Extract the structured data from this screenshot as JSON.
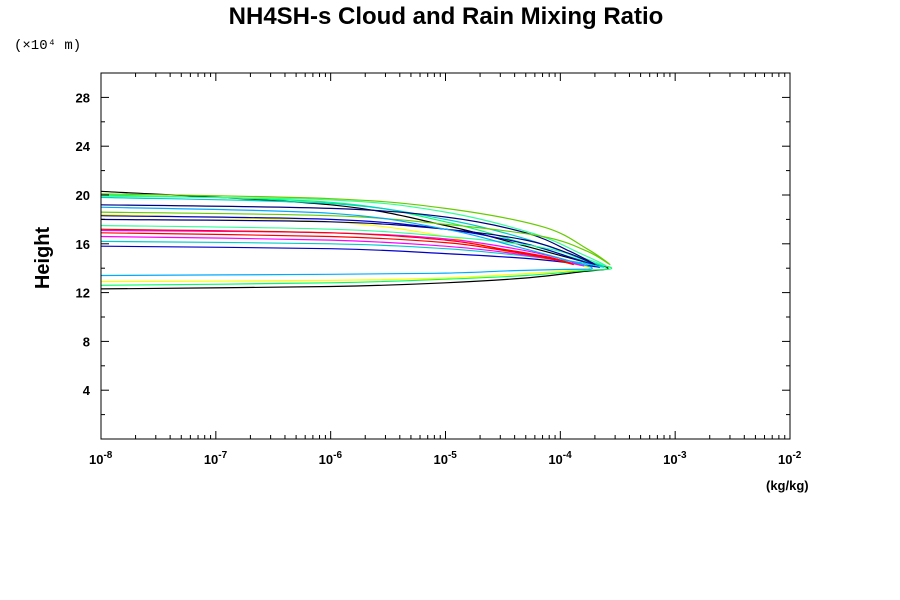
{
  "chart_data": {
    "type": "line",
    "title": "NH4SH-s Cloud and Rain Mixing Ratio",
    "xlabel": "(kg/kg)",
    "ylabel": "Height",
    "y_scale_note": "(×10⁴ m)",
    "x_scale": "log",
    "xlim": [
      1e-08,
      0.01
    ],
    "ylim": [
      0,
      30
    ],
    "x_ticks": [
      {
        "value": 1e-08,
        "base": "10",
        "exp": "-8"
      },
      {
        "value": 1e-07,
        "base": "10",
        "exp": "-7"
      },
      {
        "value": 1e-06,
        "base": "10",
        "exp": "-6"
      },
      {
        "value": 1e-05,
        "base": "10",
        "exp": "-5"
      },
      {
        "value": 0.0001,
        "base": "10",
        "exp": "-4"
      },
      {
        "value": 0.001,
        "base": "10",
        "exp": "-3"
      },
      {
        "value": 0.01,
        "base": "10",
        "exp": "-2"
      }
    ],
    "y_ticks": [
      4,
      8,
      12,
      16,
      20,
      24,
      28
    ],
    "grid": false,
    "legend": "none",
    "series": [
      {
        "color": "#000000",
        "x": [
          1e-08,
          1e-06,
          1e-05,
          5e-05,
          0.00015,
          0.00026,
          0.00015,
          5e-05,
          1e-05,
          1e-06,
          1e-08
        ],
        "y": [
          12.3,
          12.5,
          12.8,
          13.2,
          13.7,
          14.0,
          14.6,
          15.8,
          17.5,
          19.2,
          20.3
        ]
      },
      {
        "color": "#00ff66",
        "x": [
          1e-08,
          1e-06,
          1e-05,
          5e-05,
          0.00016,
          0.00028,
          0.00016,
          5e-05,
          1e-05,
          1e-06,
          1e-08
        ],
        "y": [
          12.6,
          12.8,
          13.1,
          13.4,
          13.8,
          14.0,
          14.6,
          16.0,
          17.8,
          19.4,
          20.0
        ]
      },
      {
        "color": "#ffff00",
        "x": [
          1e-08,
          1e-06,
          1e-05,
          4e-05,
          0.00012,
          0.00018,
          0.00012,
          4e-05,
          1e-05,
          1e-06,
          1e-08
        ],
        "y": [
          12.9,
          13.0,
          13.2,
          13.5,
          13.8,
          14.0,
          14.4,
          15.2,
          16.6,
          17.8,
          18.4
        ]
      },
      {
        "color": "#0000cc",
        "x": [
          1e-08,
          1e-06,
          1e-05,
          5e-05,
          0.00013,
          0.00022,
          0.00013,
          5e-05,
          1e-05,
          1e-06,
          1e-08
        ],
        "y": [
          15.8,
          15.6,
          15.2,
          14.8,
          14.4,
          14.1,
          14.8,
          16.0,
          17.2,
          18.0,
          18.3
        ]
      },
      {
        "color": "#00cccc",
        "x": [
          1e-08,
          1e-06,
          1e-05,
          5e-05,
          0.00014,
          0.00024,
          0.00014,
          5e-05,
          1e-05,
          1e-06,
          1e-08
        ],
        "y": [
          16.2,
          16.0,
          15.6,
          15.0,
          14.5,
          14.1,
          14.9,
          16.4,
          18.0,
          19.3,
          19.8
        ]
      },
      {
        "color": "#ff00ff",
        "x": [
          1e-08,
          1e-06,
          1e-05,
          4e-05,
          0.0001,
          0.00016,
          0.0001,
          4e-05,
          1e-05,
          1e-06,
          1e-08
        ],
        "y": [
          16.6,
          16.3,
          15.8,
          15.2,
          14.6,
          14.2,
          14.8,
          15.6,
          16.4,
          16.9,
          17.1
        ]
      },
      {
        "color": "#ff0000",
        "x": [
          1e-08,
          1e-06,
          1e-05,
          3e-05,
          8e-05,
          0.00013,
          8e-05,
          3e-05,
          1e-05,
          1e-06,
          1e-08
        ],
        "y": [
          16.9,
          16.6,
          16.1,
          15.5,
          14.8,
          14.3,
          14.9,
          15.6,
          16.3,
          16.9,
          17.2
        ]
      },
      {
        "color": "#33ff99",
        "x": [
          1e-08,
          1e-06,
          1e-05,
          6e-05,
          0.00015,
          0.00025,
          0.00015,
          6e-05,
          1e-05,
          1e-06,
          1e-08
        ],
        "y": [
          17.5,
          17.2,
          16.6,
          15.8,
          14.9,
          14.2,
          15.2,
          16.8,
          18.6,
          19.6,
          19.9
        ]
      },
      {
        "color": "#000080",
        "x": [
          1e-08,
          1e-06,
          1e-05,
          5e-05,
          0.00012,
          0.0002,
          0.00012,
          5e-05,
          1e-05,
          1e-06,
          1e-08
        ],
        "y": [
          18.0,
          17.8,
          17.2,
          16.3,
          15.2,
          14.3,
          15.4,
          16.9,
          18.2,
          18.9,
          19.2
        ]
      },
      {
        "color": "#66cc00",
        "x": [
          1e-08,
          1e-06,
          1e-05,
          7e-05,
          0.00017,
          0.00027,
          0.00017,
          7e-05,
          1e-05,
          1e-06,
          1e-08
        ],
        "y": [
          18.6,
          18.3,
          17.6,
          16.6,
          15.4,
          14.3,
          15.6,
          17.4,
          18.9,
          19.7,
          20.1
        ]
      },
      {
        "color": "#00aaff",
        "x": [
          1e-08,
          1e-06,
          1e-05,
          4e-05,
          0.00011,
          0.00019,
          0.00011,
          4e-05,
          1e-05,
          1e-06,
          1e-08
        ],
        "y": [
          13.4,
          13.5,
          13.6,
          13.8,
          13.9,
          14.0,
          14.7,
          15.8,
          17.2,
          18.5,
          19.0
        ]
      }
    ]
  }
}
